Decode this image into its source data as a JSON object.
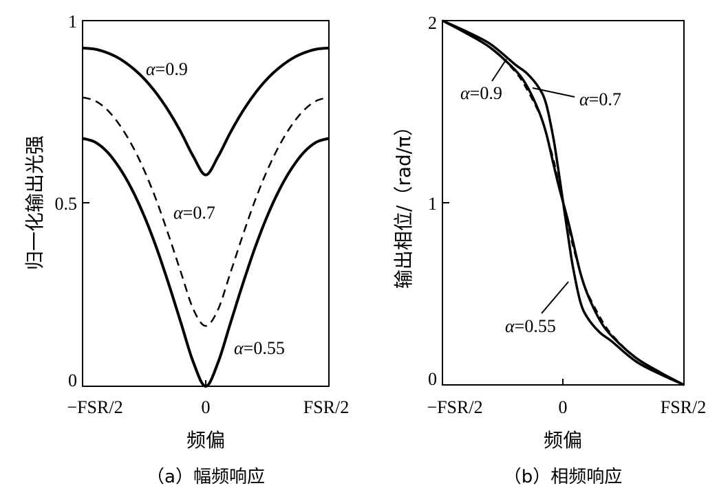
{
  "chart_data": [
    {
      "type": "line",
      "title": "",
      "caption": "（a）幅频响应",
      "xlabel": "频偏",
      "ylabel": "归一化输出光强",
      "xlim": [
        -0.5,
        0.5
      ],
      "ylim": [
        0,
        1
      ],
      "x_ticks": [
        {
          "value": -0.5,
          "label": "−FSR/2"
        },
        {
          "value": 0,
          "label": "0"
        },
        {
          "value": 0.5,
          "label": "FSR/2"
        }
      ],
      "y_ticks": [
        {
          "value": 0,
          "label": "0"
        },
        {
          "value": 0.5,
          "label": "0.5"
        },
        {
          "value": 1,
          "label": "1"
        }
      ],
      "series": [
        {
          "name": "α=0.9",
          "greek": "α",
          "value_text": "=0.9",
          "style": "solid",
          "x": [
            -0.5,
            -0.45,
            -0.4,
            -0.35,
            -0.3,
            -0.25,
            -0.2,
            -0.15,
            -0.1,
            -0.05,
            0,
            0.05,
            0.1,
            0.15,
            0.2,
            0.25,
            0.3,
            0.35,
            0.4,
            0.45,
            0.5
          ],
          "y": [
            0.925,
            0.922,
            0.912,
            0.896,
            0.872,
            0.841,
            0.801,
            0.752,
            0.694,
            0.628,
            0.578,
            0.628,
            0.694,
            0.752,
            0.801,
            0.841,
            0.872,
            0.896,
            0.912,
            0.922,
            0.925
          ]
        },
        {
          "name": "α=0.7",
          "greek": "α",
          "value_text": "=0.7",
          "style": "dashed",
          "x": [
            -0.5,
            -0.45,
            -0.4,
            -0.35,
            -0.3,
            -0.25,
            -0.2,
            -0.15,
            -0.1,
            -0.05,
            0,
            0.05,
            0.1,
            0.15,
            0.2,
            0.25,
            0.3,
            0.35,
            0.4,
            0.45,
            0.5
          ],
          "y": [
            0.79,
            0.781,
            0.756,
            0.715,
            0.66,
            0.591,
            0.508,
            0.412,
            0.31,
            0.21,
            0.165,
            0.21,
            0.31,
            0.412,
            0.508,
            0.591,
            0.66,
            0.715,
            0.756,
            0.781,
            0.79
          ]
        },
        {
          "name": "α=0.55",
          "greek": "α",
          "value_text": "=0.55",
          "style": "solid",
          "x": [
            -0.5,
            -0.45,
            -0.4,
            -0.35,
            -0.3,
            -0.25,
            -0.2,
            -0.15,
            -0.1,
            -0.05,
            0,
            0.05,
            0.1,
            0.15,
            0.2,
            0.25,
            0.3,
            0.35,
            0.4,
            0.45,
            0.5
          ],
          "y": [
            0.678,
            0.668,
            0.641,
            0.597,
            0.539,
            0.466,
            0.379,
            0.279,
            0.172,
            0.065,
            0.0,
            0.065,
            0.172,
            0.279,
            0.379,
            0.466,
            0.539,
            0.597,
            0.641,
            0.668,
            0.678
          ]
        }
      ]
    },
    {
      "type": "line",
      "title": "",
      "caption": "（b）相频响应",
      "xlabel": "频偏",
      "ylabel": "输出相位/（rad/π）",
      "xlim": [
        -0.5,
        0.5
      ],
      "ylim": [
        0,
        2
      ],
      "x_ticks": [
        {
          "value": -0.5,
          "label": "−FSR/2"
        },
        {
          "value": 0,
          "label": "0"
        },
        {
          "value": 0.5,
          "label": "FSR/2"
        }
      ],
      "y_ticks": [
        {
          "value": 0,
          "label": "0"
        },
        {
          "value": 1,
          "label": "1"
        },
        {
          "value": 2,
          "label": "2"
        }
      ],
      "series": [
        {
          "name": "α=0.9",
          "greek": "α",
          "value_text": "=0.9",
          "style": "solid",
          "x": [
            -0.5,
            -0.4,
            -0.3,
            -0.2,
            -0.15,
            -0.1,
            -0.07,
            -0.04,
            -0.02,
            0,
            0.02,
            0.04,
            0.07,
            0.1,
            0.15,
            0.2,
            0.3,
            0.4,
            0.5
          ],
          "y": [
            2.0,
            1.93,
            1.85,
            1.73,
            1.64,
            1.5,
            1.38,
            1.21,
            1.1,
            1.0,
            0.9,
            0.79,
            0.62,
            0.5,
            0.36,
            0.27,
            0.15,
            0.07,
            0.0
          ]
        },
        {
          "name": "α=0.7",
          "greek": "α",
          "value_text": "=0.7",
          "style": "dashed",
          "x": [
            -0.5,
            -0.4,
            -0.3,
            -0.2,
            -0.15,
            -0.1,
            -0.07,
            -0.04,
            -0.02,
            0,
            0.02,
            0.04,
            0.07,
            0.1,
            0.15,
            0.2,
            0.3,
            0.4,
            0.5
          ],
          "y": [
            2.0,
            1.93,
            1.85,
            1.72,
            1.62,
            1.49,
            1.38,
            1.24,
            1.12,
            1.0,
            0.88,
            0.76,
            0.62,
            0.51,
            0.38,
            0.28,
            0.15,
            0.07,
            0.0
          ]
        },
        {
          "name": "α=0.55",
          "greek": "α",
          "value_text": "=0.55",
          "style": "solid",
          "x": [
            -0.5,
            -0.4,
            -0.3,
            -0.2,
            -0.15,
            -0.1,
            -0.07,
            -0.04,
            -0.02,
            0,
            0.02,
            0.04,
            0.07,
            0.1,
            0.15,
            0.2,
            0.3,
            0.4,
            0.5
          ],
          "y": [
            2.0,
            1.94,
            1.87,
            1.76,
            1.71,
            1.63,
            1.54,
            1.35,
            1.18,
            1.0,
            0.82,
            0.65,
            0.46,
            0.37,
            0.29,
            0.24,
            0.13,
            0.06,
            0.0
          ]
        }
      ]
    }
  ]
}
